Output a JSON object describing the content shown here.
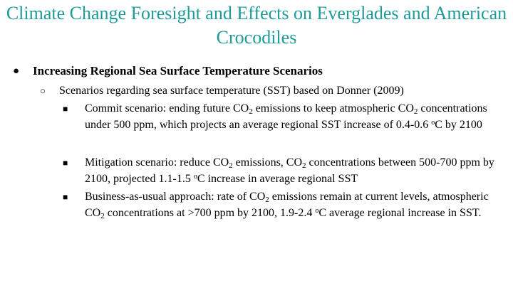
{
  "title": "Climate Change Foresight and Effects on Everglades and American Crocodiles",
  "bullet1": {
    "marker": "●",
    "text": "Increasing Regional Sea Surface Temperature Scenarios"
  },
  "bullet2": {
    "marker": "○",
    "text": "Scenarios regarding sea surface temperature (SST) based on Donner (2009)"
  },
  "bullets3": [
    {
      "marker": "■",
      "seg": [
        "Commit scenario: ending future CO",
        "2",
        " emissions to keep atmospheric CO",
        "2",
        " concentrations under 500 ppm, which projects an average regional SST increase of 0.4-0.6 ",
        "o",
        "C by 2100"
      ]
    },
    {
      "marker": "■",
      "seg": [
        "Mitigation scenario: reduce CO",
        "2",
        " emissions, CO",
        "2",
        "  concentrations between 500-700 ppm by 2100, projected 1.1-1.5 ",
        "o",
        "C increase in average regional SST"
      ]
    },
    {
      "marker": "■",
      "seg": [
        "Business-as-usual approach:  rate of  CO",
        "2",
        " emissions remain at current levels, atmospheric CO",
        "2",
        " concentrations at >700 ppm by 2100, 1.9-2.4 ",
        "o",
        "C average regional increase in SST."
      ]
    }
  ]
}
